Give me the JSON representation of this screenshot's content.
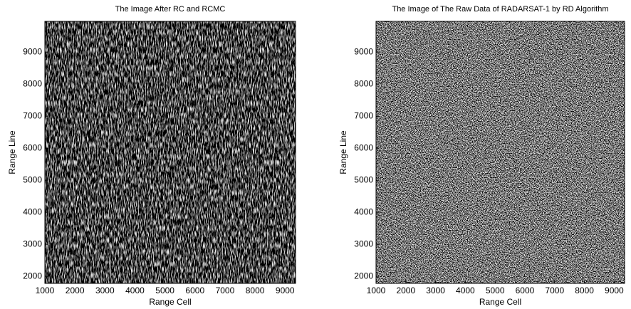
{
  "chart_data": [
    {
      "type": "image",
      "title": "The Image After RC and RCMC",
      "xlabel": "Range Cell",
      "ylabel": "Range Line",
      "xlim": [
        1000,
        9350
      ],
      "ylim": [
        1780,
        9960
      ],
      "xticks": [
        1000,
        2000,
        3000,
        4000,
        5000,
        6000,
        7000,
        8000,
        9000
      ],
      "yticks": [
        2000,
        3000,
        4000,
        5000,
        6000,
        7000,
        8000,
        9000
      ]
    },
    {
      "type": "image",
      "title": "The Image of The Raw Data of RADARSAT-1 by RD Algorithm",
      "xlabel": "Range Cell",
      "ylabel": "Range Line",
      "xlim": [
        1000,
        9350
      ],
      "ylim": [
        1780,
        9960
      ],
      "xticks": [
        1000,
        2000,
        3000,
        4000,
        5000,
        6000,
        7000,
        8000,
        9000
      ],
      "yticks": [
        2000,
        3000,
        4000,
        5000,
        6000,
        7000,
        8000,
        9000
      ]
    }
  ]
}
